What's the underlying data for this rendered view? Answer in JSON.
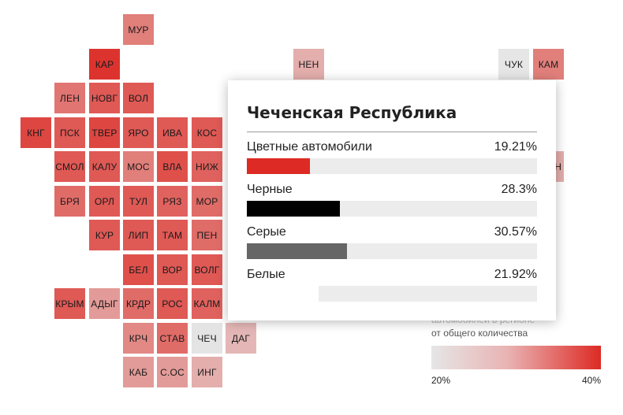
{
  "colors": {
    "low": "#e6e6e6",
    "high": "#dd2a24",
    "selected": "#e4e4e4"
  },
  "scale": {
    "min": 20,
    "max": 40
  },
  "tiles": [
    {
      "code": "МУР",
      "col": 3,
      "row": 0,
      "value": 31
    },
    {
      "code": "КАР",
      "col": 2,
      "row": 1,
      "value": 39
    },
    {
      "code": "НЕН",
      "col": 8,
      "row": 1,
      "value": 26
    },
    {
      "code": "ЧУК",
      "col": 14,
      "row": 1,
      "value": 20
    },
    {
      "code": "КАМ",
      "col": 15,
      "row": 1,
      "value": 31
    },
    {
      "code": "ЛЕН",
      "col": 1,
      "row": 2,
      "value": 32
    },
    {
      "code": "НОВГ",
      "col": 2,
      "row": 2,
      "value": 35
    },
    {
      "code": "ВОЛ",
      "col": 3,
      "row": 2,
      "value": 35
    },
    {
      "code": "КНГ",
      "col": 0,
      "row": 3,
      "value": 37
    },
    {
      "code": "ПСК",
      "col": 1,
      "row": 3,
      "value": 35
    },
    {
      "code": "ТВЕР",
      "col": 2,
      "row": 3,
      "value": 37
    },
    {
      "code": "ЯРО",
      "col": 3,
      "row": 3,
      "value": 35
    },
    {
      "code": "ИВА",
      "col": 4,
      "row": 3,
      "value": 35
    },
    {
      "code": "КОС",
      "col": 5,
      "row": 3,
      "value": 35
    },
    {
      "code": "СМОЛ",
      "col": 1,
      "row": 4,
      "value": 35
    },
    {
      "code": "КАЛУ",
      "col": 2,
      "row": 4,
      "value": 35
    },
    {
      "code": "МОС",
      "col": 3,
      "row": 4,
      "value": 31
    },
    {
      "code": "ВЛА",
      "col": 4,
      "row": 4,
      "value": 36
    },
    {
      "code": "НИЖ",
      "col": 5,
      "row": 4,
      "value": 34
    },
    {
      "code": "СХЛН",
      "col": 15,
      "row": 4,
      "value": 26
    },
    {
      "code": "БРЯ",
      "col": 1,
      "row": 5,
      "value": 33
    },
    {
      "code": "ОРЛ",
      "col": 2,
      "row": 5,
      "value": 35
    },
    {
      "code": "ТУЛ",
      "col": 3,
      "row": 5,
      "value": 35
    },
    {
      "code": "РЯЗ",
      "col": 4,
      "row": 5,
      "value": 34
    },
    {
      "code": "МОР",
      "col": 5,
      "row": 5,
      "value": 33
    },
    {
      "code": "КУР",
      "col": 2,
      "row": 6,
      "value": 35
    },
    {
      "code": "ЛИП",
      "col": 3,
      "row": 6,
      "value": 35
    },
    {
      "code": "ТАМ",
      "col": 4,
      "row": 6,
      "value": 35
    },
    {
      "code": "ПЕН",
      "col": 5,
      "row": 6,
      "value": 33
    },
    {
      "code": "БЕЛ",
      "col": 3,
      "row": 7,
      "value": 36
    },
    {
      "code": "ВОР",
      "col": 4,
      "row": 7,
      "value": 35
    },
    {
      "code": "ВОЛГ",
      "col": 5,
      "row": 7,
      "value": 35
    },
    {
      "code": "КРЫМ",
      "col": 1,
      "row": 8,
      "value": 35
    },
    {
      "code": "АДЫГ",
      "col": 2,
      "row": 8,
      "value": 28
    },
    {
      "code": "КРДР",
      "col": 3,
      "row": 8,
      "value": 33
    },
    {
      "code": "РОС",
      "col": 4,
      "row": 8,
      "value": 35
    },
    {
      "code": "КАЛМ",
      "col": 5,
      "row": 8,
      "value": 34
    },
    {
      "code": "КРЧ",
      "col": 3,
      "row": 9,
      "value": 30
    },
    {
      "code": "СТАВ",
      "col": 4,
      "row": 9,
      "value": 33
    },
    {
      "code": "ЧЕЧ",
      "col": 5,
      "row": 9,
      "value": 22,
      "selected": true
    },
    {
      "code": "ДАГ",
      "col": 6,
      "row": 9,
      "value": 25
    },
    {
      "code": "КАБ",
      "col": 3,
      "row": 10,
      "value": 28
    },
    {
      "code": "С.ОС",
      "col": 4,
      "row": 10,
      "value": 28
    },
    {
      "code": "ИНГ",
      "col": 5,
      "row": 10,
      "value": 26
    }
  ],
  "legend": {
    "title_line1": "автомобилей в регионе",
    "title_line2": "от общего количества",
    "min_label": "20%",
    "max_label": "40%"
  },
  "tooltip": {
    "title": "Чеченская Республика",
    "rows": [
      {
        "label": "Цветные автомобили",
        "value": "19.21%",
        "fraction": 0.1921,
        "color": "#dd2a24"
      },
      {
        "label": "Черные",
        "value": "28.3%",
        "fraction": 0.283,
        "color": "#000000"
      },
      {
        "label": "Серые",
        "value": "30.57%",
        "fraction": 0.3057,
        "color": "#666666"
      },
      {
        "label": "Белые",
        "value": "21.92%",
        "fraction": 0.2192,
        "color": "#ffffff"
      }
    ]
  }
}
